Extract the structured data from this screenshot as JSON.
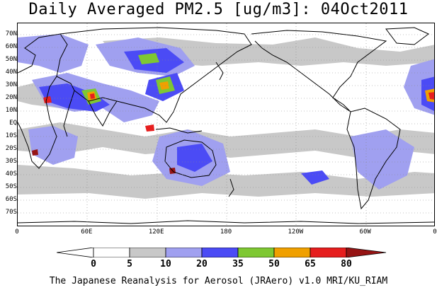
{
  "title": "Daily Averaged PM2.5 [ug/m3]: 04Oct2011",
  "footer": "The Japanese Reanalysis for Aerosol (JRAero) v1.0 MRI/KU_RIAM",
  "lat_labels": [
    "70N",
    "60N",
    "50N",
    "40N",
    "30N",
    "20N",
    "10N",
    "EQ",
    "10S",
    "20S",
    "30S",
    "40S",
    "50S",
    "60S",
    "70S"
  ],
  "lon_labels": [
    "0",
    "60E",
    "120E",
    "180",
    "120W",
    "60W",
    "0"
  ],
  "colorbar": {
    "labels": [
      "0",
      "5",
      "10",
      "20",
      "35",
      "50",
      "65",
      "80"
    ],
    "colors": [
      "#ffffff",
      "#c8c8c8",
      "#a0a0f0",
      "#4b4bf5",
      "#7ec832",
      "#f0a000",
      "#e61e1e",
      "#961414"
    ]
  }
}
